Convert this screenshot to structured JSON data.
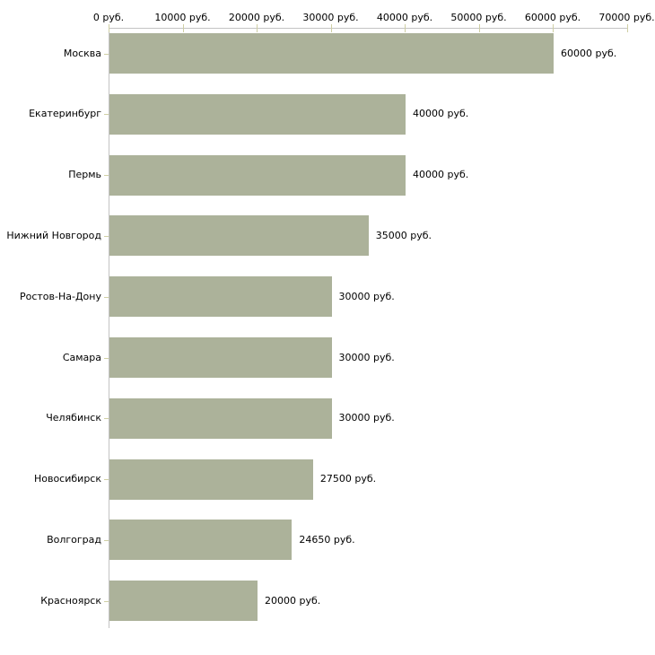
{
  "chart_data": {
    "type": "bar",
    "orientation": "horizontal",
    "title": "",
    "categories": [
      "Москва",
      "Екатеринбург",
      "Пермь",
      "Нижний Новгород",
      "Ростов-На-Дону",
      "Самара",
      "Челябинск",
      "Новосибирск",
      "Волгоград",
      "Красноярск"
    ],
    "values": [
      60000,
      40000,
      40000,
      35000,
      30000,
      30000,
      30000,
      27500,
      24650,
      20000
    ],
    "value_labels": [
      "60000 руб.",
      "40000 руб.",
      "40000 руб.",
      "35000 руб.",
      "30000 руб.",
      "30000 руб.",
      "30000 руб.",
      "27500 руб.",
      "24650 руб.",
      "20000 руб."
    ],
    "x_axis": {
      "position": "top",
      "range": [
        0,
        70000
      ],
      "tick_values": [
        0,
        10000,
        20000,
        30000,
        40000,
        50000,
        60000,
        70000
      ],
      "tick_labels": [
        "0 руб.",
        "10000 руб.",
        "20000 руб.",
        "30000 руб.",
        "40000 руб.",
        "50000 руб.",
        "60000 руб.",
        "70000 руб."
      ]
    },
    "unit": "руб.",
    "grid": false,
    "legend": null,
    "colors": {
      "bar": "#acb29a",
      "axis": "#c3c3c3",
      "tick": "#cfcfa4",
      "text": "#000000",
      "background": "#ffffff"
    }
  }
}
